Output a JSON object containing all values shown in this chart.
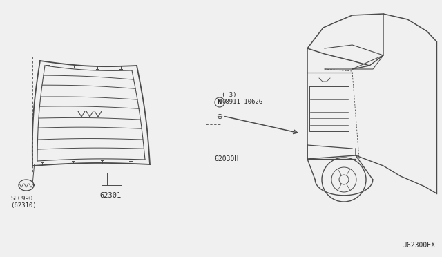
{
  "bg_color": "#f0f0f0",
  "line_color": "#4a4a4a",
  "text_color": "#2a2a2a",
  "labels": {
    "grille_part": "62301",
    "bracket": "62030H",
    "clip_line1": "08911-1062G",
    "clip_line2": "( 3)",
    "sec_line1": "SEC990",
    "sec_line2": "(62310)",
    "diagram_id": "J62300EX"
  },
  "figsize": [
    6.4,
    3.72
  ],
  "dpi": 100
}
